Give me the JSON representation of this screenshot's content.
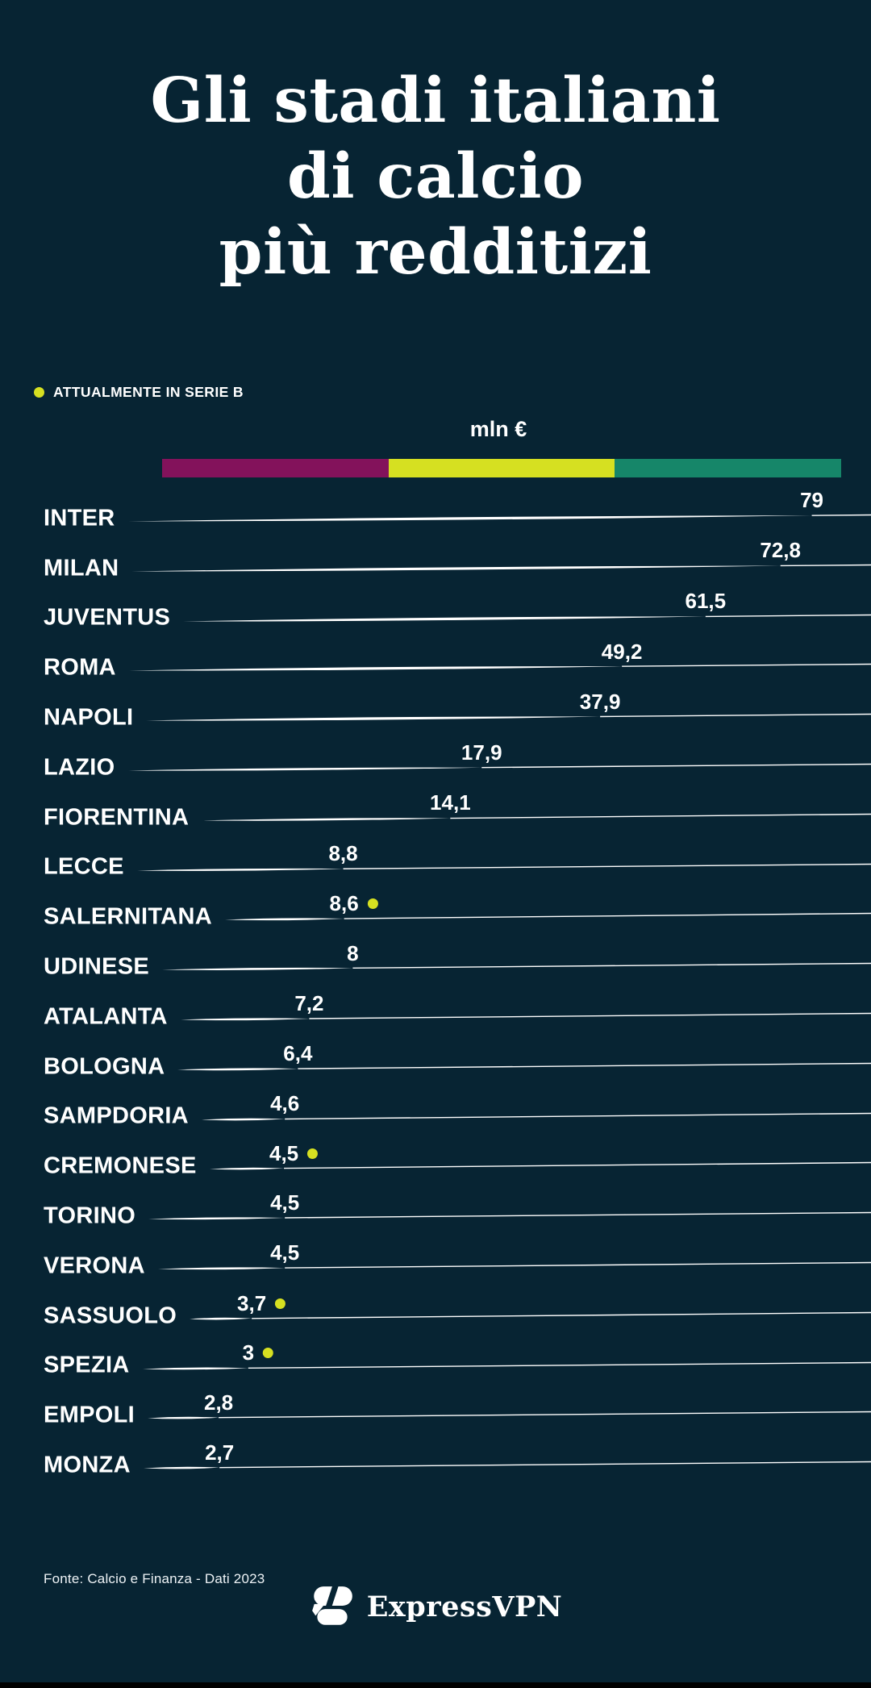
{
  "page": {
    "bg_color": "#072433"
  },
  "header": {
    "title_lines": [
      "Gli stadi italiani",
      "di calcio",
      "più redditizi"
    ]
  },
  "legend": {
    "label": "ATTUALMENTE IN SERIE B",
    "dot_color": "#d6e021"
  },
  "scale": {
    "unit_label": "mln €",
    "segment_colors": [
      "#83125b",
      "#d6e021",
      "#168669"
    ]
  },
  "chart_data": {
    "type": "bar",
    "orientation": "horizontal",
    "title": "Gli stadi italiani di calcio più redditizi",
    "unit": "mln €",
    "xlim": [
      0,
      79
    ],
    "legend_note": "Yellow dot = ATTUALMENTE IN SERIE B",
    "rows": [
      {
        "team": "INTER",
        "value": 79,
        "value_label": "79",
        "serie_b": false,
        "label_x_pct": 93.2
      },
      {
        "team": "MILAN",
        "value": 72.8,
        "value_label": "72,8",
        "serie_b": false,
        "label_x_pct": 89.6
      },
      {
        "team": "JUVENTUS",
        "value": 61.5,
        "value_label": "61,5",
        "serie_b": false,
        "label_x_pct": 81.0
      },
      {
        "team": "ROMA",
        "value": 49.2,
        "value_label": "49,2",
        "serie_b": false,
        "label_x_pct": 71.4
      },
      {
        "team": "NAPOLI",
        "value": 37.9,
        "value_label": "37,9",
        "serie_b": false,
        "label_x_pct": 68.9
      },
      {
        "team": "LAZIO",
        "value": 17.9,
        "value_label": "17,9",
        "serie_b": false,
        "label_x_pct": 55.3
      },
      {
        "team": "FIORENTINA",
        "value": 14.1,
        "value_label": "14,1",
        "serie_b": false,
        "label_x_pct": 51.7
      },
      {
        "team": "LECCE",
        "value": 8.8,
        "value_label": "8,8",
        "serie_b": false,
        "label_x_pct": 39.4
      },
      {
        "team": "SALERNITANA",
        "value": 8.6,
        "value_label": "8,6",
        "serie_b": true,
        "label_x_pct": 39.5
      },
      {
        "team": "UDINESE",
        "value": 8,
        "value_label": "8",
        "serie_b": false,
        "label_x_pct": 40.5
      },
      {
        "team": "ATALANTA",
        "value": 7.2,
        "value_label": "7,2",
        "serie_b": false,
        "label_x_pct": 35.5
      },
      {
        "team": "BOLOGNA",
        "value": 6.4,
        "value_label": "6,4",
        "serie_b": false,
        "label_x_pct": 34.2
      },
      {
        "team": "SAMPDORIA",
        "value": 4.6,
        "value_label": "4,6",
        "serie_b": false,
        "label_x_pct": 32.7
      },
      {
        "team": "CREMONESE",
        "value": 4.5,
        "value_label": "4,5",
        "serie_b": true,
        "label_x_pct": 32.6
      },
      {
        "team": "TORINO",
        "value": 4.5,
        "value_label": "4,5",
        "serie_b": false,
        "label_x_pct": 32.7
      },
      {
        "team": "VERONA",
        "value": 4.5,
        "value_label": "4,5",
        "serie_b": false,
        "label_x_pct": 32.7
      },
      {
        "team": "SASSUOLO",
        "value": 3.7,
        "value_label": "3,7",
        "serie_b": true,
        "label_x_pct": 28.9
      },
      {
        "team": "SPEZIA",
        "value": 3,
        "value_label": "3",
        "serie_b": true,
        "label_x_pct": 28.5
      },
      {
        "team": "EMPOLI",
        "value": 2.8,
        "value_label": "2,8",
        "serie_b": false,
        "label_x_pct": 25.1
      },
      {
        "team": "MONZA",
        "value": 2.7,
        "value_label": "2,7",
        "serie_b": false,
        "label_x_pct": 25.2
      }
    ]
  },
  "footer": {
    "source": "Fonte: Calcio e Finanza - Dati 2023",
    "brand": "ExpressVPN"
  }
}
